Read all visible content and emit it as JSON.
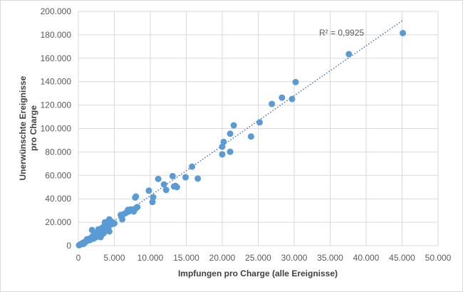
{
  "chart_data": {
    "type": "scatter",
    "xlabel": "Impfungen pro Charge (alle Ereignisse)",
    "ylabel_lines": [
      "Unerwünschte Ereignisse",
      "pro Charge"
    ],
    "xlim": [
      0,
      50000
    ],
    "ylim": [
      0,
      200000
    ],
    "x_ticks": [
      0,
      5000,
      10000,
      15000,
      20000,
      25000,
      30000,
      35000,
      40000,
      45000,
      50000
    ],
    "x_tick_labels": [
      "0",
      "5.000",
      "10.000",
      "15.000",
      "20.000",
      "25.000",
      "30.000",
      "35.000",
      "40.000",
      "45.000",
      "50.000"
    ],
    "y_ticks": [
      0,
      20000,
      40000,
      60000,
      80000,
      100000,
      120000,
      140000,
      160000,
      180000,
      200000
    ],
    "y_tick_labels": [
      "0",
      "20.000",
      "40.000",
      "60.000",
      "80.000",
      "100.000",
      "120.000",
      "140.000",
      "160.000",
      "180.000",
      "200.000"
    ],
    "grid": true,
    "point_color": "#5b9bd5",
    "trendline_color": "#4a73a8",
    "trendline": {
      "type": "linear",
      "x": [
        0,
        45000
      ],
      "y": [
        0,
        192000
      ],
      "style": "dotted"
    },
    "annotation": "R² = 0,9925",
    "points": [
      [
        45100,
        181500
      ],
      [
        37600,
        163500
      ],
      [
        30200,
        139700
      ],
      [
        28300,
        126400
      ],
      [
        29700,
        125200
      ],
      [
        26900,
        121000
      ],
      [
        25200,
        105300
      ],
      [
        24000,
        93200
      ],
      [
        21600,
        102700
      ],
      [
        21100,
        95600
      ],
      [
        20200,
        88600
      ],
      [
        20000,
        84500
      ],
      [
        20000,
        78000
      ],
      [
        21100,
        80200
      ],
      [
        15800,
        67500
      ],
      [
        16600,
        57300
      ],
      [
        14900,
        58400
      ],
      [
        13100,
        59400
      ],
      [
        11100,
        57000
      ],
      [
        11900,
        52300
      ],
      [
        13500,
        51100
      ],
      [
        13300,
        50600
      ],
      [
        13700,
        50000
      ],
      [
        12200,
        47600
      ],
      [
        9800,
        47000
      ],
      [
        10400,
        41300
      ],
      [
        8000,
        42000
      ],
      [
        7900,
        41100
      ],
      [
        10300,
        37300
      ],
      [
        8200,
        33000
      ],
      [
        7900,
        31500
      ],
      [
        7600,
        30000
      ],
      [
        7300,
        31000
      ],
      [
        7000,
        29200
      ],
      [
        6900,
        30600
      ],
      [
        7700,
        29200
      ],
      [
        8000,
        32000
      ],
      [
        6600,
        28000
      ],
      [
        6300,
        27000
      ],
      [
        5900,
        26300
      ],
      [
        6100,
        22500
      ],
      [
        4300,
        22500
      ],
      [
        4000,
        19500
      ],
      [
        4400,
        20500
      ],
      [
        4700,
        18500
      ],
      [
        4900,
        19500
      ],
      [
        3700,
        20000
      ],
      [
        3300,
        15200
      ],
      [
        3600,
        16800
      ],
      [
        3900,
        14500
      ],
      [
        4300,
        12200
      ],
      [
        2800,
        14000
      ],
      [
        1900,
        13400
      ],
      [
        3100,
        7300
      ],
      [
        2600,
        11000
      ],
      [
        2300,
        9500
      ],
      [
        2000,
        8200
      ],
      [
        2500,
        7400
      ],
      [
        1800,
        6500
      ],
      [
        1500,
        6000
      ],
      [
        1200,
        5500
      ],
      [
        1300,
        4300
      ],
      [
        1000,
        3500
      ],
      [
        800,
        3000
      ],
      [
        600,
        2300
      ],
      [
        500,
        1800
      ],
      [
        300,
        1200
      ],
      [
        200,
        800
      ],
      [
        100,
        400
      ],
      [
        700,
        1500
      ],
      [
        900,
        2600
      ],
      [
        1600,
        4800
      ],
      [
        2100,
        6000
      ],
      [
        2700,
        9000
      ],
      [
        3000,
        12000
      ],
      [
        3400,
        13000
      ],
      [
        3800,
        17000
      ],
      [
        4200,
        16000
      ],
      [
        4500,
        21000
      ],
      [
        5000,
        19000
      ],
      [
        3500,
        10500
      ]
    ]
  }
}
